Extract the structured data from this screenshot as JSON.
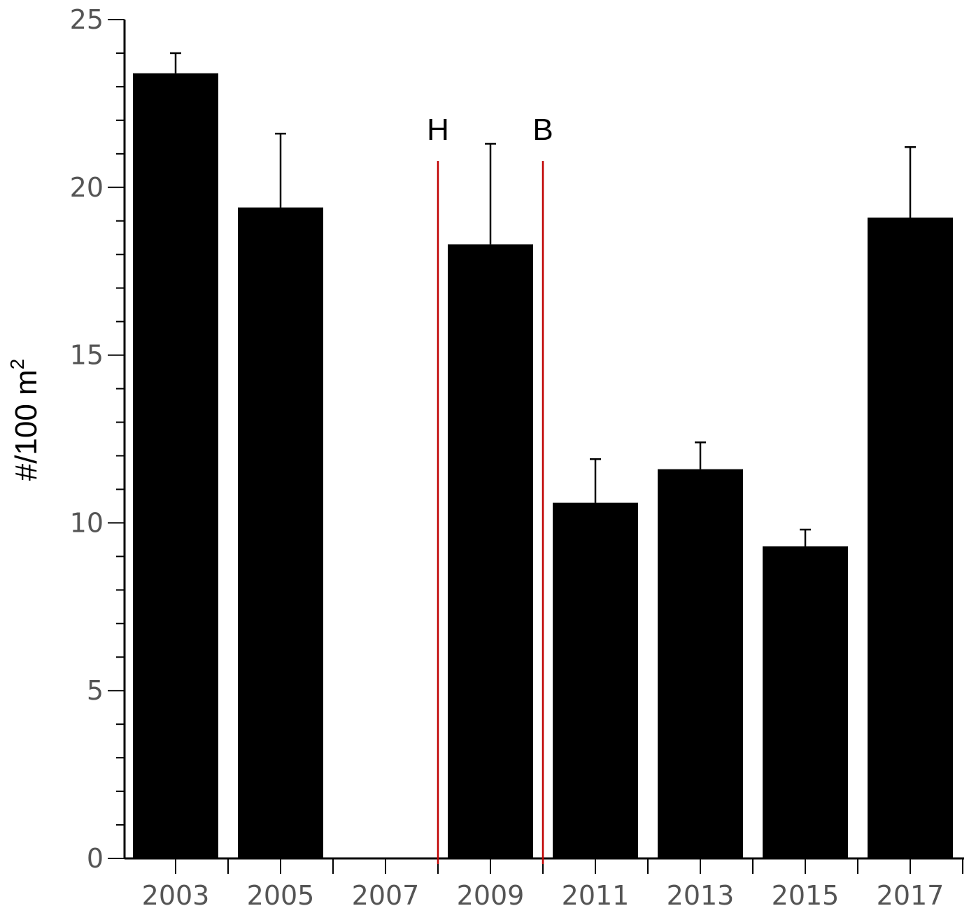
{
  "chart_data": {
    "type": "bar",
    "categories": [
      "2003",
      "2005",
      "2007",
      "2009",
      "2011",
      "2013",
      "2015",
      "2017"
    ],
    "values": [
      23.4,
      19.4,
      0,
      18.3,
      10.6,
      11.6,
      9.3,
      19.1
    ],
    "error_upper": [
      24.0,
      21.6,
      null,
      21.3,
      11.9,
      12.4,
      9.8,
      21.2
    ],
    "ylabel": "#/100 m",
    "ylabel_superscript": "2",
    "ylim": [
      0,
      25
    ],
    "yticks": [
      "0",
      "5",
      "10",
      "15",
      "20",
      "25"
    ],
    "grid": false,
    "bar_color": "#000000",
    "markers": [
      {
        "label": "H",
        "x": 2008,
        "color": "#c00000"
      },
      {
        "label": "B",
        "x": 2010,
        "color": "#c00000"
      }
    ]
  }
}
